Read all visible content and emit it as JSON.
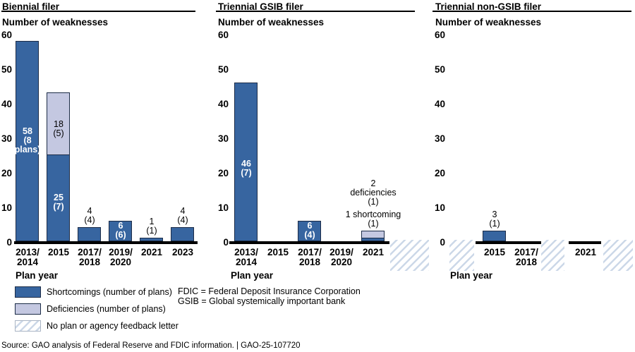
{
  "colors": {
    "shortcomings": "#3765a0",
    "deficiencies": "#c4c8e1",
    "bar_border": "#1c2c47",
    "hatch_line": "#ccd8e8",
    "axis_line": "#000000"
  },
  "legend": {
    "items": [
      {
        "swatch": "shortcomings",
        "label": "Shortcomings (number of plans)"
      },
      {
        "swatch": "deficiencies",
        "label": "Deficiencies (number of plans)"
      },
      {
        "swatch": "hatch",
        "label": "No plan or agency feedback letter"
      }
    ]
  },
  "notes": {
    "line1": "FDIC = Federal Deposit Insurance Corporation",
    "line2": "GSIB = Global systemically important bank"
  },
  "source": "Source: GAO analysis of Federal Reserve and FDIC information.  |  GAO-25-107720",
  "chart_data": [
    {
      "type": "bar",
      "title": "Biennial filer",
      "y_axis_title": "Number of weaknesses",
      "x_axis_title": "Plan year",
      "ylim": [
        0,
        60
      ],
      "yticks": [
        0,
        10,
        20,
        30,
        40,
        50,
        60
      ],
      "columns": [
        {
          "kind": "category",
          "tick_lines": [
            "2013/",
            "2014"
          ],
          "shortcomings": 58,
          "deficiencies": 0,
          "labels": [
            {
              "lines": [
                "58",
                "(8",
                "plans)"
              ],
              "placement": "inside",
              "color": "white",
              "bold": true,
              "dy": 0
            }
          ]
        },
        {
          "kind": "category",
          "tick_lines": [
            "2015"
          ],
          "shortcomings": 25,
          "deficiencies": 18,
          "labels": [
            {
              "lines": [
                "18",
                "(5)"
              ],
              "placement": "inside-light",
              "color": "black",
              "bold": false,
              "dy": 8
            },
            {
              "lines": [
                "25",
                "(7)"
              ],
              "placement": "inside-dark",
              "color": "white",
              "bold": true,
              "dy": 6
            }
          ]
        },
        {
          "kind": "category",
          "tick_lines": [
            "2017/",
            "2018"
          ],
          "shortcomings": 4,
          "deficiencies": 0,
          "labels": [
            {
              "lines": [
                "4",
                "(4)"
              ],
              "placement": "above",
              "color": "black",
              "bold": false
            }
          ]
        },
        {
          "kind": "category",
          "tick_lines": [
            "2019/",
            "2020"
          ],
          "shortcomings": 6,
          "deficiencies": 0,
          "labels": [
            {
              "lines": [
                "6",
                "(6)"
              ],
              "placement": "inside",
              "color": "white",
              "bold": true,
              "dy": 0
            }
          ]
        },
        {
          "kind": "category",
          "tick_lines": [
            "2021"
          ],
          "shortcomings": 1,
          "deficiencies": 0,
          "labels": [
            {
              "lines": [
                "1",
                "(1)"
              ],
              "placement": "above",
              "color": "black",
              "bold": false
            }
          ]
        },
        {
          "kind": "category",
          "tick_lines": [
            "2023"
          ],
          "shortcomings": 4,
          "deficiencies": 0,
          "labels": [
            {
              "lines": [
                "4",
                "(4)"
              ],
              "placement": "above",
              "color": "black",
              "bold": false
            }
          ]
        }
      ]
    },
    {
      "type": "bar",
      "title": "Triennial GSIB filer",
      "y_axis_title": "Number of weaknesses",
      "x_axis_title": "Plan year",
      "ylim": [
        0,
        60
      ],
      "yticks": [
        0,
        10,
        20,
        30,
        40,
        50,
        60
      ],
      "columns": [
        {
          "kind": "category",
          "tick_lines": [
            "2013/",
            "2014"
          ],
          "shortcomings": 46,
          "deficiencies": 0,
          "labels": [
            {
              "lines": [
                "46",
                "(7)"
              ],
              "placement": "inside",
              "color": "white",
              "bold": true,
              "dy": 10
            }
          ]
        },
        {
          "kind": "category",
          "tick_lines": [
            "2015"
          ],
          "shortcomings": 0,
          "deficiencies": 0
        },
        {
          "kind": "category",
          "tick_lines": [
            "2017/",
            "2018"
          ],
          "shortcomings": 6,
          "deficiencies": 0,
          "labels": [
            {
              "lines": [
                "6",
                "(4)"
              ],
              "placement": "inside",
              "color": "white",
              "bold": true,
              "dy": 0
            }
          ]
        },
        {
          "kind": "category",
          "tick_lines": [
            "2019/",
            "2020"
          ],
          "shortcomings": 0,
          "deficiencies": 0
        },
        {
          "kind": "category",
          "tick_lines": [
            "2021"
          ],
          "shortcomings": 1,
          "deficiencies": 2,
          "labels": [
            {
              "lines": [
                "2",
                "deficiencies",
                "(1)"
              ],
              "placement": "above",
              "color": "black",
              "bold": false
            },
            {
              "lines": [
                "1 shortcoming",
                "(1)"
              ],
              "placement": "above",
              "color": "black",
              "bold": false
            }
          ]
        },
        {
          "kind": "no-plan-hatch"
        }
      ]
    },
    {
      "type": "bar",
      "title": "Triennial non-GSIB filer",
      "y_axis_title": "Number of weaknesses",
      "x_axis_title": "Plan year",
      "ylim": [
        0,
        60
      ],
      "yticks": [
        0,
        10,
        20,
        30,
        40,
        50,
        60
      ],
      "columns": [
        {
          "kind": "no-plan-hatch"
        },
        {
          "kind": "category",
          "tick_lines": [
            "2015"
          ],
          "shortcomings": 3,
          "deficiencies": 0,
          "labels": [
            {
              "lines": [
                "3",
                "(1)"
              ],
              "placement": "above",
              "color": "black",
              "bold": false
            }
          ]
        },
        {
          "kind": "category",
          "tick_lines": [
            "2017/",
            "2018"
          ],
          "shortcomings": 0,
          "deficiencies": 0
        },
        {
          "kind": "no-plan-hatch"
        },
        {
          "kind": "category",
          "tick_lines": [
            "2021"
          ],
          "shortcomings": 0,
          "deficiencies": 0
        },
        {
          "kind": "no-plan-hatch"
        }
      ]
    }
  ]
}
